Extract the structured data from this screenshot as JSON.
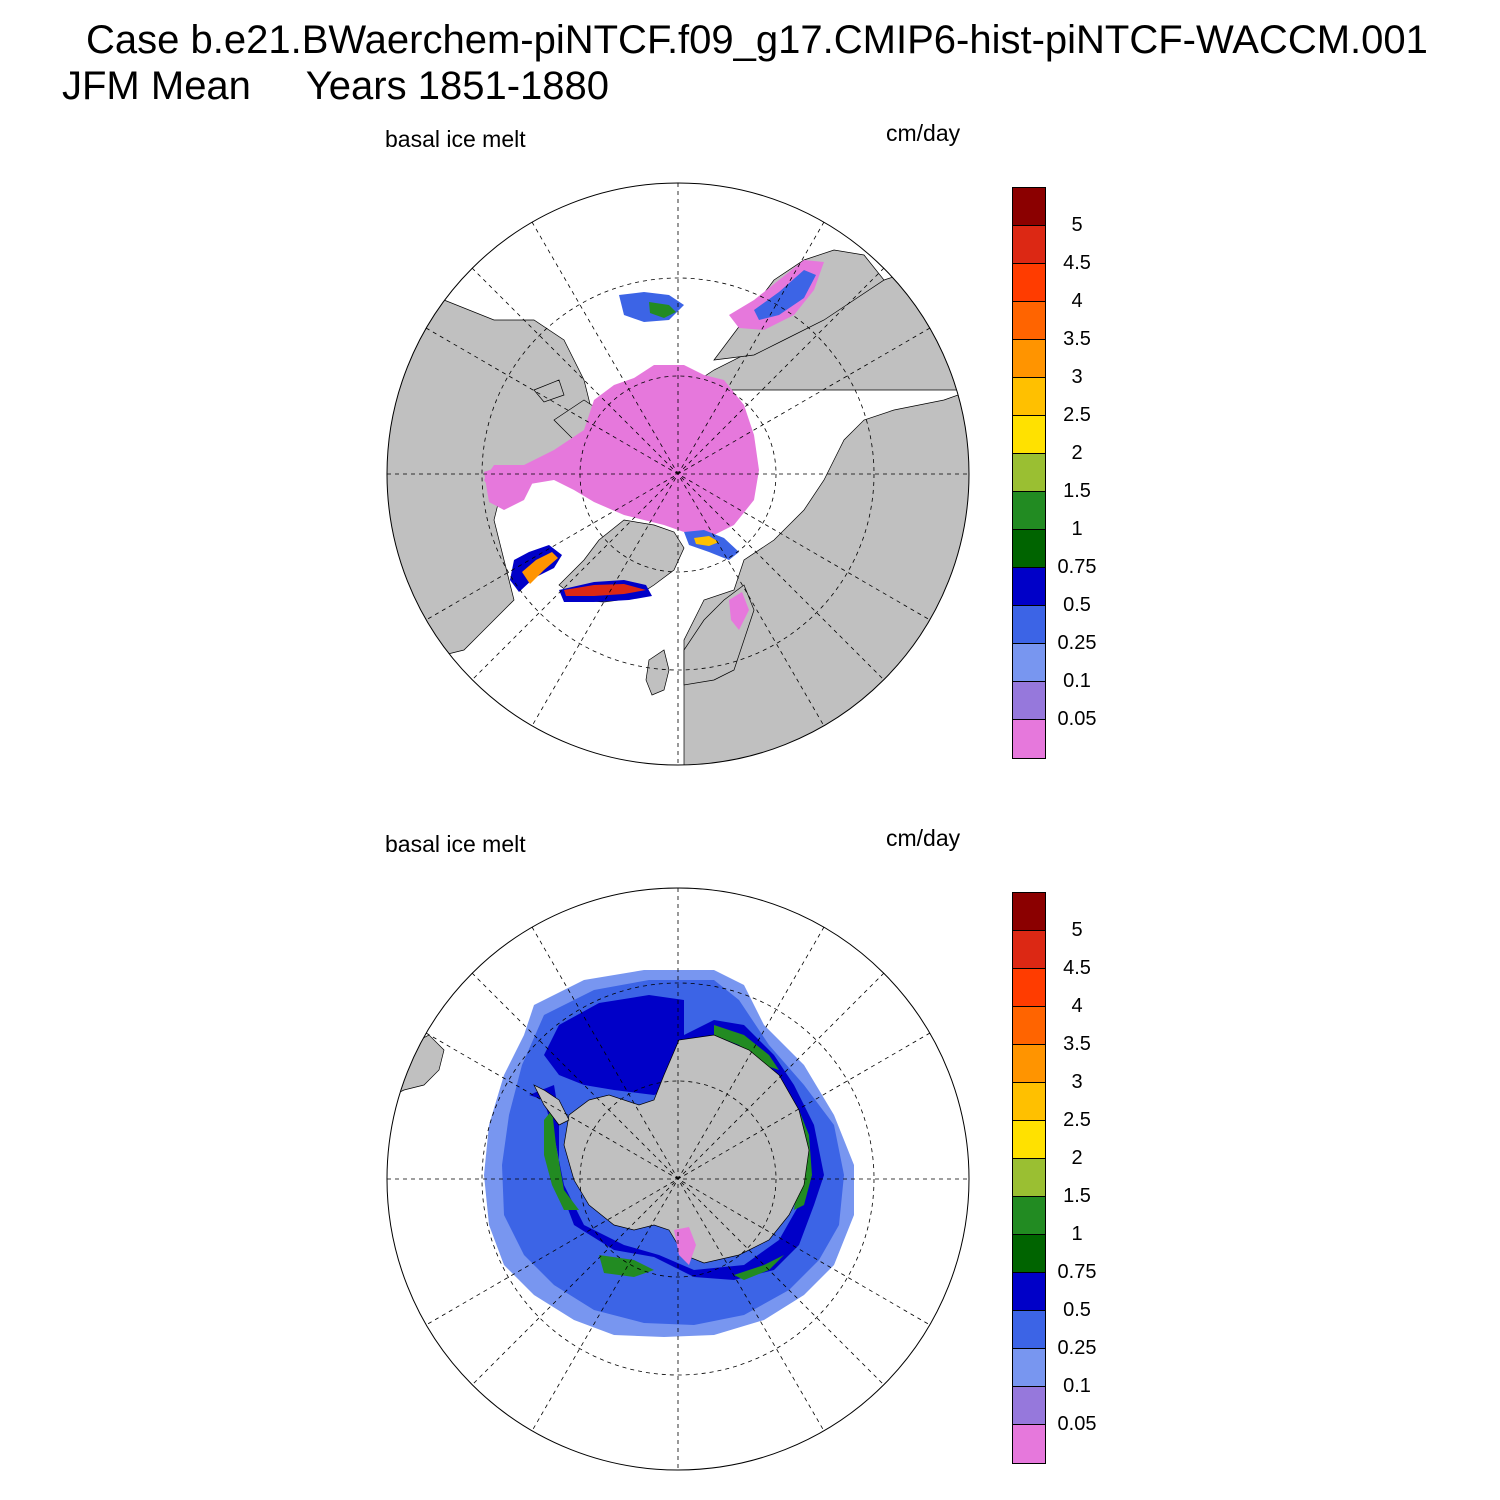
{
  "header": {
    "case_line": "Case b.e21.BWaerchem-piNTCF.f09_g17.CMIP6-hist-piNTCF-WACCM.001",
    "period_line": "JFM Mean     Years 1851-1880"
  },
  "panels": [
    {
      "variable_label": "basal ice melt",
      "units_label": "cm/day",
      "hemisphere": "north"
    },
    {
      "variable_label": "basal ice melt",
      "units_label": "cm/day",
      "hemisphere": "south"
    }
  ],
  "colorbar": {
    "levels": [
      "5",
      "4.5",
      "4",
      "3.5",
      "3",
      "2.5",
      "2",
      "1.5",
      "1",
      "0.75",
      "0.5",
      "0.25",
      "0.1",
      "0.05"
    ],
    "colors_top_to_bottom": [
      "#8b0000",
      "#dc2814",
      "#ff3c00",
      "#ff6400",
      "#ff9400",
      "#ffc000",
      "#ffe100",
      "#9abf32",
      "#228b22",
      "#006400",
      "#0000c8",
      "#3c64e6",
      "#7896f0",
      "#9678dc",
      "#e678dc"
    ]
  },
  "colors": {
    "land": "#c0c0c0",
    "ocean_no_ice": "#ffffff",
    "grid_line": "#000000"
  }
}
